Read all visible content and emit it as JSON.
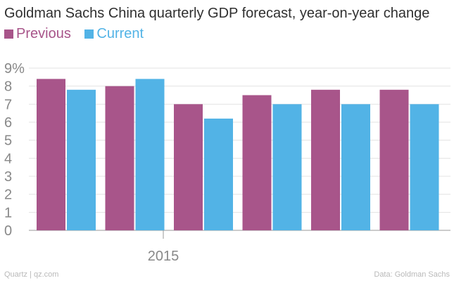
{
  "chart_data": {
    "type": "bar",
    "title": "Goldman Sachs China quarterly GDP forecast, year-on-year change",
    "categories": [
      "",
      "",
      "",
      "",
      "",
      ""
    ],
    "x_axis_labels": [
      "2015"
    ],
    "series": [
      {
        "name": "Previous",
        "color": "#a8558a",
        "values": [
          8.4,
          8.0,
          7.0,
          7.5,
          7.8,
          7.8
        ]
      },
      {
        "name": "Current",
        "color": "#52b3e6",
        "values": [
          7.8,
          8.4,
          6.2,
          7.0,
          7.0,
          7.0
        ]
      }
    ],
    "ylim": [
      0,
      9
    ],
    "y_ticks": [
      "0",
      "1",
      "2",
      "3",
      "4",
      "5",
      "6",
      "7",
      "8",
      "9%"
    ],
    "grid": true,
    "legend_position": "top-left"
  },
  "footer": {
    "source_left": "Quartz | qz.com",
    "source_right": "Data: Goldman Sachs"
  }
}
